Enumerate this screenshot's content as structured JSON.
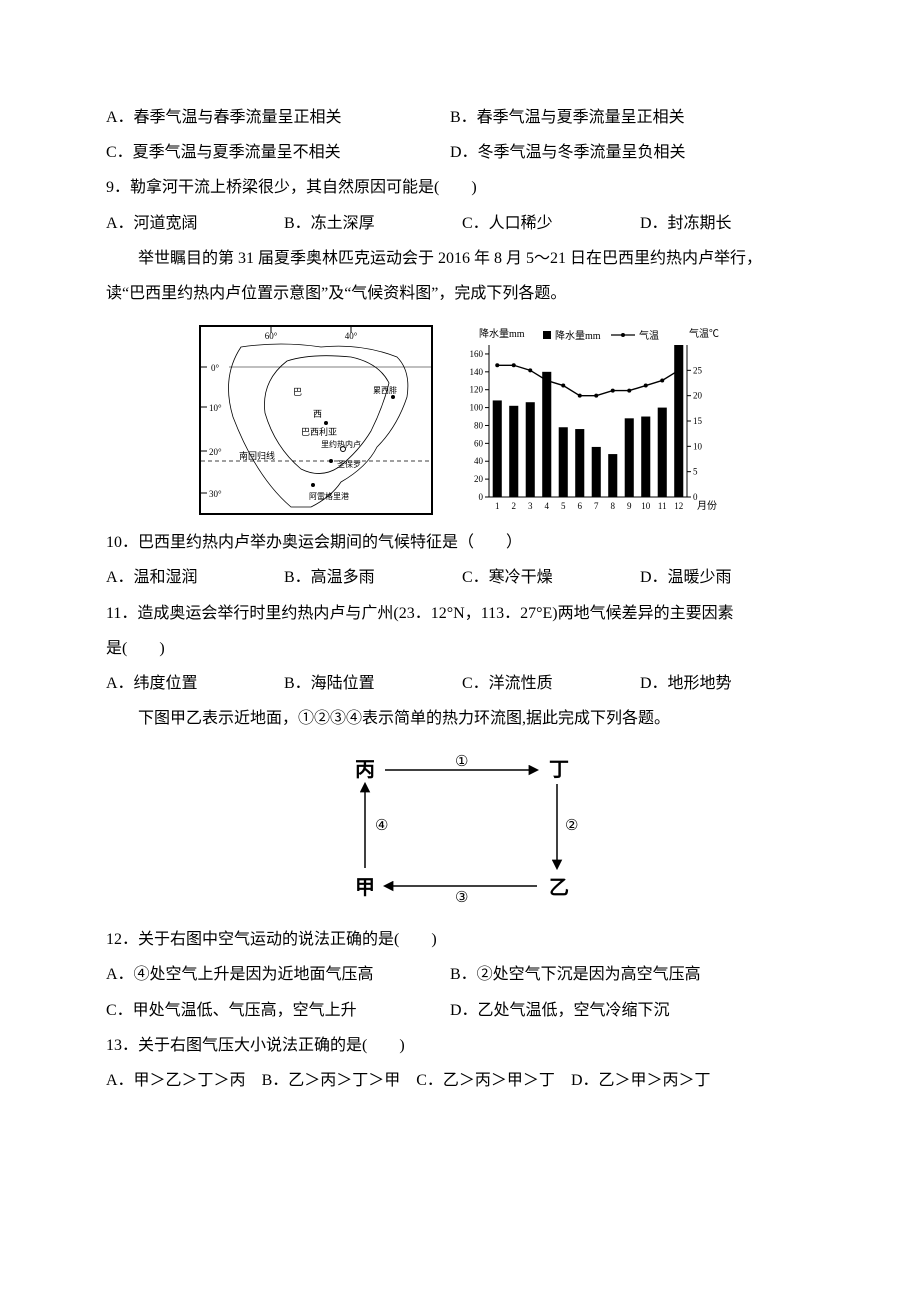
{
  "q_options_AB_8": {
    "A": "A．春季气温与春季流量呈正相关",
    "B": "B．春季气温与夏季流量呈正相关"
  },
  "q_options_CD_8": {
    "C": "C．夏季气温与夏季流量呈不相关",
    "D": "D．冬季气温与冬季流量呈负相关"
  },
  "q9": "9．勒拿河干流上桥梁很少，其自然原因可能是(　　)",
  "q9_opts": {
    "A": "A．河道宽阔",
    "B": "B．冻土深厚",
    "C": "C．人口稀少",
    "D": "D．封冻期长"
  },
  "intro_rio_1": "举世瞩目的第 31 届夏季奥林匹克运动会于 2016 年 8 月 5～21 日在巴西里约热内卢举行，",
  "intro_rio_2": "读“巴西里约热内卢位置示意图”及“气候资料图”，完成下列各题。",
  "map": {
    "lon_ticks": [
      "60°",
      "40°"
    ],
    "lat_ticks": [
      "0°",
      "10°",
      "20°",
      "30°"
    ],
    "places": {
      "brazil": "巴",
      "west": "西",
      "brasilia": "巴西利亚",
      "rio": "里约热内卢",
      "saopaulo": "圣保罗",
      "tropic": "南回归线",
      "portoalegre": "阿雷格里港",
      "cumbea": "累西腓"
    }
  },
  "chart": {
    "y_label_left": "降水量mm",
    "y_label_right": "气温℃",
    "legend_precip": "降水量mm",
    "legend_temp": "气温",
    "x_label": "月份",
    "precip_ticks": [
      0,
      20,
      40,
      60,
      80,
      100,
      120,
      140,
      160
    ],
    "temp_ticks": [
      0,
      5,
      10,
      15,
      20,
      25
    ],
    "months": [
      1,
      2,
      3,
      4,
      5,
      6,
      7,
      8,
      9,
      10,
      11,
      12
    ],
    "precip_values": [
      108,
      102,
      106,
      140,
      78,
      76,
      56,
      48,
      88,
      90,
      100,
      170
    ],
    "temp_values": [
      26,
      26,
      25,
      23,
      22,
      20,
      20,
      21,
      21,
      22,
      23,
      25
    ],
    "precip_max": 170,
    "temp_max": 30,
    "bar_color": "#000000",
    "line_color": "#000000",
    "grid_color": "#000000",
    "bg": "#ffffff"
  },
  "q10": "10．巴西里约热内卢举办奥运会期间的气候特征是（　　）",
  "q10_opts": {
    "A": "A．温和湿润",
    "B": "B．高温多雨",
    "C": "C．寒冷干燥",
    "D": "D．温暖少雨"
  },
  "q11_1": "11．造成奥运会举行时里约热内卢与广州(23．12°N，113．27°E)两地气候差异的主要因素",
  "q11_2": "是(　　)",
  "q11_opts": {
    "A": "A．纬度位置",
    "B": "B．海陆位置",
    "C": "C．洋流性质",
    "D": "D．地形地势"
  },
  "intro_circ": "下图甲乙表示近地面，①②③④表示简单的热力环流图,据此完成下列各题。",
  "circ": {
    "tl": "丙",
    "tr": "丁",
    "bl": "甲",
    "br": "乙",
    "n1": "①",
    "n2": "②",
    "n3": "③",
    "n4": "④"
  },
  "q12": "12．关于右图中空气运动的说法正确的是(　　)",
  "q12_opts": {
    "A": "A．④处空气上升是因为近地面气压高",
    "B": "B．②处空气下沉是因为高空气压高",
    "C": "C．甲处气温低、气压高，空气上升",
    "D": "D．乙处气温低，空气冷缩下沉"
  },
  "q13": "13．关于右图气压大小说法正确的是(　　)",
  "q13_opts": {
    "A": "A．甲＞乙＞丁＞丙",
    "B": "B．乙＞丙＞丁＞甲",
    "C": "C．乙＞丙＞甲＞丁",
    "D": "D．乙＞甲＞丙＞丁"
  }
}
